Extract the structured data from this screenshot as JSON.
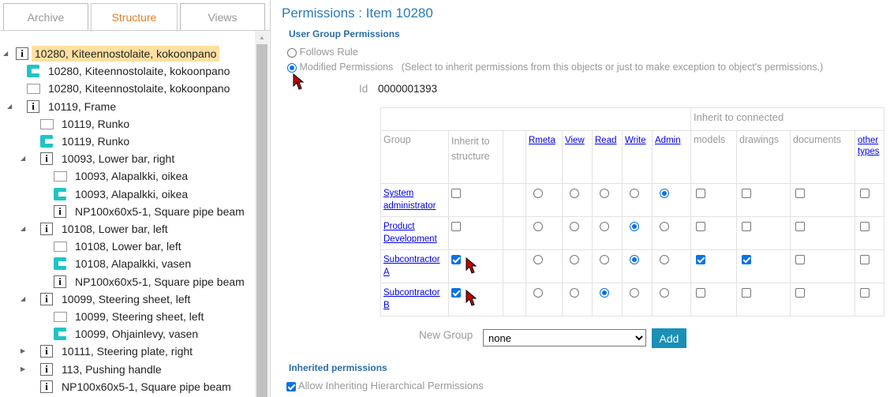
{
  "tabs": [
    {
      "label": "Archive",
      "active": false
    },
    {
      "label": "Structure",
      "active": true
    },
    {
      "label": "Views",
      "active": false
    }
  ],
  "tree": [
    {
      "level": 0,
      "arrow": "expanded",
      "icon": "info",
      "label": "10280, Kiteennostolaite, kokoonpano",
      "selected": true
    },
    {
      "level": 1,
      "arrow": null,
      "icon": "model",
      "label": "10280, Kiteennostolaite, kokoonpano"
    },
    {
      "level": 1,
      "arrow": null,
      "icon": "doc",
      "label": "10280, Kiteennostolaite, kokoonpano"
    },
    {
      "level": 1,
      "arrow": "expanded",
      "icon": "info",
      "label": "10119, Frame"
    },
    {
      "level": 2,
      "arrow": null,
      "icon": "doc",
      "label": "10119, Runko"
    },
    {
      "level": 2,
      "arrow": null,
      "icon": "model",
      "label": "10119, Runko"
    },
    {
      "level": 2,
      "arrow": "expanded",
      "icon": "info",
      "label": "10093, Lower bar, right"
    },
    {
      "level": 3,
      "arrow": null,
      "icon": "doc",
      "label": "10093, Alapalkki, oikea"
    },
    {
      "level": 3,
      "arrow": null,
      "icon": "model",
      "label": "10093, Alapalkki, oikea"
    },
    {
      "level": 3,
      "arrow": null,
      "icon": "info",
      "label": "NP100x60x5-1, Square pipe beam"
    },
    {
      "level": 2,
      "arrow": "expanded",
      "icon": "info",
      "label": "10108, Lower bar, left"
    },
    {
      "level": 3,
      "arrow": null,
      "icon": "doc",
      "label": "10108, Lower bar, left"
    },
    {
      "level": 3,
      "arrow": null,
      "icon": "model",
      "label": "10108, Alapalkki, vasen"
    },
    {
      "level": 3,
      "arrow": null,
      "icon": "info",
      "label": "NP100x60x5-1, Square pipe beam"
    },
    {
      "level": 2,
      "arrow": "expanded",
      "icon": "info",
      "label": "10099, Steering sheet, left"
    },
    {
      "level": 3,
      "arrow": null,
      "icon": "doc",
      "label": "10099, Steering sheet, left"
    },
    {
      "level": 3,
      "arrow": null,
      "icon": "model",
      "label": "10099, Ohjainlevy, vasen"
    },
    {
      "level": 2,
      "arrow": "collapsed",
      "icon": "info",
      "label": "10111, Steering plate, right"
    },
    {
      "level": 2,
      "arrow": "collapsed",
      "icon": "info",
      "label": "113, Pushing handle"
    },
    {
      "level": 2,
      "arrow": null,
      "icon": "info",
      "label": "NP100x60x5-1, Square pipe beam"
    }
  ],
  "header": {
    "title": "Permissions : Item 10280",
    "section": "User Group Permissions"
  },
  "mode": {
    "follows_rule": "Follows Rule",
    "modified": "Modified Permissions",
    "hint": "(Select to inherit permissions from this objects or just to make exception to object's permissions.)",
    "selected": "modified"
  },
  "id": {
    "label": "Id",
    "value": "0000001393"
  },
  "table": {
    "inherit_connected": "Inherit to connected",
    "group_header": "Group",
    "inherit_structure": "Inherit to structure",
    "perm_columns": [
      "Rmeta",
      "View",
      "Read",
      "Write",
      "Admin"
    ],
    "connected_columns": [
      {
        "label": "models",
        "link": false
      },
      {
        "label": "drawings",
        "link": false
      },
      {
        "label": "documents",
        "link": false
      },
      {
        "label": "other types",
        "link": true
      }
    ],
    "rows": [
      {
        "group": "System administrator",
        "inherit": false,
        "permission": "Admin",
        "connected": [
          false,
          false,
          false,
          false
        ]
      },
      {
        "group": "Product Development",
        "inherit": false,
        "permission": "Write",
        "connected": [
          false,
          false,
          false,
          false
        ]
      },
      {
        "group": "Subcontractor A",
        "inherit": true,
        "permission": "Write",
        "connected": [
          true,
          true,
          false,
          false
        ]
      },
      {
        "group": "Subcontractor B",
        "inherit": true,
        "permission": "Read",
        "connected": [
          false,
          false,
          false,
          false
        ]
      }
    ]
  },
  "new_group": {
    "label": "New Group",
    "value": "none",
    "add": "Add"
  },
  "inherited": {
    "section": "Inherited permissions",
    "allow": "Allow Inheriting Hierarchical Permissions",
    "checked": true
  },
  "colors": {
    "accent": "#0a72e6",
    "title": "#2a7ab8",
    "tab_active": "#e67e22",
    "selection": "#ffe0a0",
    "model_icon": "#20c4c4",
    "add_button": "#1a8fb8",
    "cursor": "#c00000"
  }
}
